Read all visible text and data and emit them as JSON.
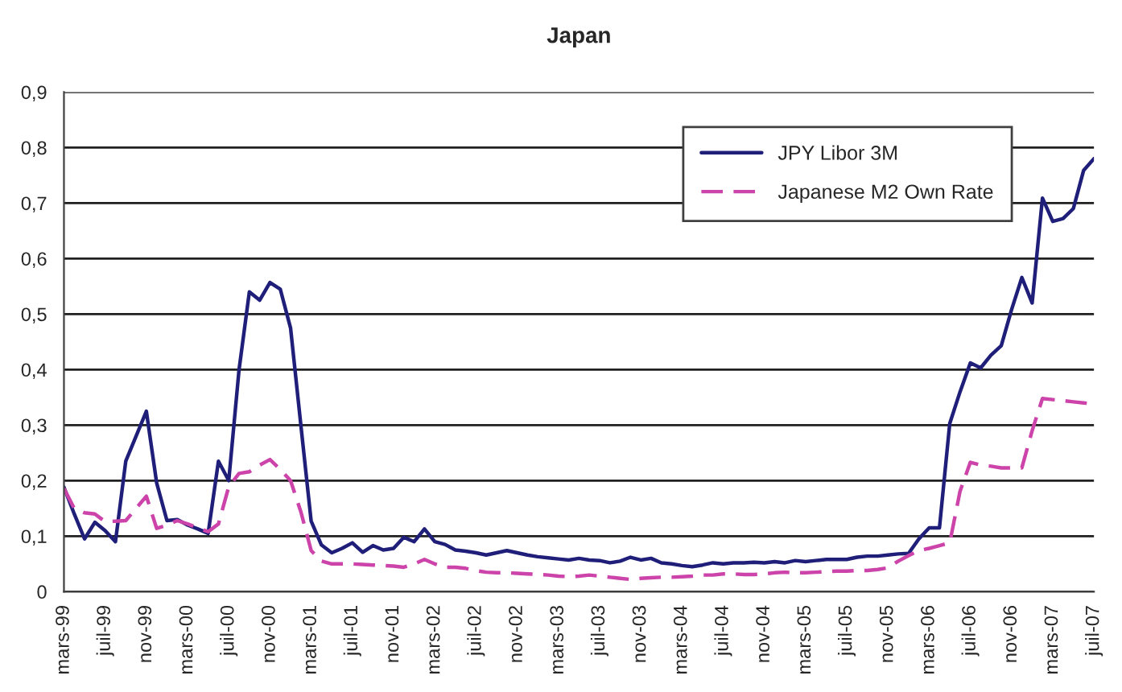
{
  "chart_data": {
    "type": "line",
    "title": "Japan",
    "categories": [
      "mars-99",
      null,
      null,
      null,
      "juil-99",
      null,
      null,
      null,
      "nov-99",
      null,
      null,
      null,
      "mars-00",
      null,
      null,
      null,
      "juil-00",
      null,
      null,
      null,
      "nov-00",
      null,
      null,
      null,
      "mars-01",
      null,
      null,
      null,
      "juil-01",
      null,
      null,
      null,
      "nov-01",
      null,
      null,
      null,
      "mars-02",
      null,
      null,
      null,
      "juil-02",
      null,
      null,
      null,
      "nov-02",
      null,
      null,
      null,
      "mars-03",
      null,
      null,
      null,
      "juil-03",
      null,
      null,
      null,
      "nov-03",
      null,
      null,
      null,
      "mars-04",
      null,
      null,
      null,
      "juil-04",
      null,
      null,
      null,
      "nov-04",
      null,
      null,
      null,
      "mars-05",
      null,
      null,
      null,
      "juil-05",
      null,
      null,
      null,
      "nov-05",
      null,
      null,
      null,
      "mars-06",
      null,
      null,
      null,
      "juil-06",
      null,
      null,
      null,
      "nov-06",
      null,
      null,
      null,
      "mars-07",
      null,
      null,
      null,
      "juil-07"
    ],
    "series": [
      {
        "name": "JPY Libor 3M",
        "color": "#1f1f7a",
        "line_style": "solid",
        "values": [
          0.188,
          0.14,
          0.095,
          0.125,
          0.11,
          0.09,
          0.235,
          0.28,
          0.325,
          0.196,
          0.128,
          0.13,
          0.12,
          0.113,
          0.105,
          0.235,
          0.2,
          0.4,
          0.54,
          0.525,
          0.557,
          0.545,
          0.475,
          0.3,
          0.127,
          0.084,
          0.07,
          0.078,
          0.088,
          0.071,
          0.083,
          0.075,
          0.078,
          0.098,
          0.09,
          0.113,
          0.09,
          0.085,
          0.075,
          0.073,
          0.07,
          0.066,
          0.07,
          0.074,
          0.07,
          0.066,
          0.063,
          0.061,
          0.059,
          0.057,
          0.06,
          0.057,
          0.056,
          0.052,
          0.055,
          0.062,
          0.057,
          0.06,
          0.052,
          0.05,
          0.047,
          0.045,
          0.048,
          0.052,
          0.05,
          0.052,
          0.052,
          0.053,
          0.052,
          0.054,
          0.052,
          0.056,
          0.054,
          0.056,
          0.058,
          0.058,
          0.058,
          0.062,
          0.064,
          0.064,
          0.066,
          0.068,
          0.069,
          0.095,
          0.115,
          0.115,
          0.303,
          0.36,
          0.412,
          0.403,
          0.426,
          0.443,
          0.508,
          0.566,
          0.52,
          0.709,
          0.667,
          0.672,
          0.69,
          0.759,
          0.78
        ]
      },
      {
        "name": "Japanese M2 Own Rate",
        "color": "#cc44aa",
        "line_style": "dashed",
        "values": [
          0.186,
          0.15,
          0.142,
          0.14,
          0.126,
          0.127,
          0.128,
          0.15,
          0.172,
          0.114,
          0.12,
          0.128,
          0.122,
          0.115,
          0.108,
          0.122,
          0.189,
          0.213,
          0.216,
          0.228,
          0.238,
          0.22,
          0.2,
          0.144,
          0.074,
          0.055,
          0.05,
          0.05,
          0.05,
          0.049,
          0.048,
          0.047,
          0.046,
          0.044,
          0.05,
          0.058,
          0.05,
          0.044,
          0.044,
          0.042,
          0.038,
          0.035,
          0.034,
          0.034,
          0.033,
          0.032,
          0.031,
          0.03,
          0.028,
          0.027,
          0.028,
          0.03,
          0.028,
          0.026,
          0.024,
          0.022,
          0.024,
          0.025,
          0.026,
          0.026,
          0.027,
          0.028,
          0.03,
          0.03,
          0.032,
          0.032,
          0.031,
          0.031,
          0.032,
          0.034,
          0.035,
          0.034,
          0.034,
          0.035,
          0.036,
          0.037,
          0.037,
          0.038,
          0.038,
          0.04,
          0.043,
          0.055,
          0.065,
          0.074,
          0.078,
          0.083,
          0.088,
          0.181,
          0.233,
          0.228,
          0.226,
          0.223,
          0.223,
          0.223,
          0.29,
          0.348,
          0.346,
          0.344,
          0.342,
          0.34,
          0.338
        ]
      }
    ],
    "ylim": [
      0,
      0.9
    ],
    "yticks": [
      0,
      {
        "value": 0.1,
        "label": "0,1"
      },
      {
        "value": 0.2,
        "label": "0,2"
      },
      {
        "value": 0.3,
        "label": "0,3"
      },
      {
        "value": 0.4,
        "label": "0,4"
      },
      {
        "value": 0.5,
        "label": "0,5"
      },
      {
        "value": 0.6,
        "label": "0,6"
      },
      {
        "value": 0.7,
        "label": "0,7"
      },
      {
        "value": 0.8,
        "label": "0,8"
      },
      {
        "value": 0.9,
        "label": "0,9"
      }
    ],
    "grid": "y",
    "legend": "top right",
    "marker": "none"
  }
}
